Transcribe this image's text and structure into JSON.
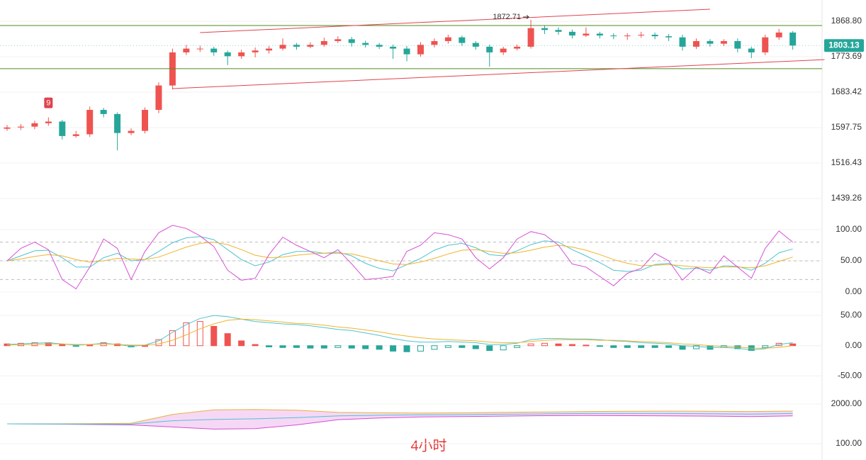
{
  "chart_data": [
    {
      "type": "candlestick",
      "log_scale": true,
      "grid": true,
      "ylim": [
        1409.5,
        1928.3
      ],
      "yticks": [
        {
          "value": 1868.8,
          "label": "1868.80"
        },
        1773.69,
        1683.42,
        1597.75,
        1516.43,
        1439.26
      ],
      "up_color": "#ef5350",
      "down_color": "#26a69a",
      "open": [
        1595,
        1598,
        1600,
        1608,
        1612,
        1578,
        1582,
        1640,
        1630,
        1585,
        1590,
        1640,
        1700,
        1785,
        1795,
        1795,
        1785,
        1775,
        1785,
        1790,
        1795,
        1805,
        1800,
        1805,
        1815,
        1820,
        1810,
        1805,
        1800,
        1795,
        1780,
        1805,
        1815,
        1825,
        1810,
        1800,
        1785,
        1795,
        1800,
        1850,
        1845,
        1840,
        1830,
        1835,
        1830,
        1828,
        1830,
        1832,
        1828,
        1825,
        1800,
        1815,
        1808,
        1815,
        1795,
        1785,
        1825,
        1838
      ],
      "high": [
        1604,
        1606,
        1614,
        1622,
        1616,
        1590,
        1648,
        1645,
        1634,
        1596,
        1646,
        1708,
        1795,
        1805,
        1803,
        1800,
        1790,
        1792,
        1798,
        1802,
        1822,
        1810,
        1812,
        1824,
        1828,
        1826,
        1816,
        1810,
        1806,
        1802,
        1812,
        1822,
        1832,
        1830,
        1815,
        1806,
        1800,
        1806,
        1872.71,
        1858,
        1852,
        1846,
        1852,
        1840,
        1836,
        1836,
        1840,
        1838,
        1834,
        1832,
        1822,
        1820,
        1820,
        1822,
        1800,
        1832,
        1848,
        1842
      ],
      "low": [
        1590,
        1592,
        1594,
        1602,
        1570,
        1574,
        1576,
        1622,
        1545,
        1580,
        1584,
        1632,
        1690,
        1778,
        1786,
        1776,
        1752,
        1768,
        1772,
        1782,
        1790,
        1792,
        1796,
        1800,
        1810,
        1800,
        1798,
        1794,
        1768,
        1762,
        1774,
        1798,
        1808,
        1802,
        1792,
        1748,
        1778,
        1790,
        1795,
        1834,
        1832,
        1822,
        1826,
        1822,
        1820,
        1818,
        1824,
        1820,
        1815,
        1790,
        1794,
        1800,
        1802,
        1785,
        1770,
        1778,
        1818,
        1792
      ],
      "close": [
        1598,
        1600,
        1608,
        1612,
        1578,
        1582,
        1640,
        1630,
        1585,
        1590,
        1640,
        1700,
        1785,
        1795,
        1795,
        1785,
        1775,
        1785,
        1790,
        1795,
        1805,
        1800,
        1805,
        1815,
        1820,
        1810,
        1805,
        1800,
        1795,
        1780,
        1805,
        1815,
        1825,
        1810,
        1800,
        1785,
        1795,
        1800,
        1850,
        1845,
        1840,
        1830,
        1835,
        1830,
        1828,
        1830,
        1832,
        1828,
        1825,
        1800,
        1815,
        1808,
        1815,
        1795,
        1785,
        1825,
        1838,
        1803.13
      ],
      "hlines": {
        "values": [
          1857.2,
          1742.6
        ],
        "color": "#4f8a1f"
      },
      "channel": {
        "color": "#e0434f",
        "lines": [
          {
            "x": [
              14,
              51
            ],
            "values": [
              1837.9,
              1902.2
            ]
          },
          {
            "x": [
              12,
              59.3
            ],
            "values": [
              1692.3,
              1766.1
            ]
          }
        ]
      },
      "marker": {
        "text": "9",
        "index": 3,
        "color": "#e0434f"
      },
      "last_price_color": "#26a69a",
      "caption": "4小时"
    },
    {
      "type": "line",
      "grid": true,
      "ylim": [
        -14.8,
        127.3
      ],
      "yticks": [
        {
          "value": 100,
          "label": "100.00"
        },
        {
          "value": 50,
          "label": "50.00"
        },
        {
          "value": 0,
          "label": "0.00"
        }
      ],
      "ref_lines": [
        80,
        50,
        20
      ],
      "series": [
        {
          "color": "#4fc3d0",
          "values": [
            50,
            58,
            66,
            67,
            55,
            40,
            40,
            55,
            62,
            50,
            52,
            65,
            79,
            87,
            89,
            84,
            68,
            52,
            42,
            48,
            60,
            65,
            65,
            62,
            64,
            58,
            46,
            38,
            34,
            44,
            54,
            67,
            75,
            78,
            71,
            60,
            58,
            66,
            76,
            82,
            80,
            68,
            58,
            47,
            35,
            33,
            35,
            44,
            46,
            37,
            38,
            35,
            42,
            41,
            35,
            46,
            63,
            69
          ]
        },
        {
          "color": "#f0b429",
          "values": [
            50,
            53,
            57,
            60,
            58,
            52,
            48,
            50,
            54,
            53,
            52,
            56,
            64,
            72,
            78,
            80,
            76,
            68,
            59,
            55,
            56,
            59,
            61,
            62,
            62,
            61,
            56,
            50,
            45,
            44,
            48,
            54,
            61,
            67,
            68,
            65,
            62,
            63,
            67,
            72,
            75,
            72,
            67,
            60,
            52,
            46,
            42,
            43,
            44,
            42,
            40,
            39,
            40,
            40,
            39,
            42,
            49,
            56
          ]
        },
        {
          "color": "#d64fd6",
          "values": [
            50,
            70,
            80,
            68,
            20,
            5,
            40,
            85,
            70,
            20,
            65,
            95,
            107,
            102,
            90,
            73,
            35,
            19,
            22,
            60,
            88,
            75,
            65,
            55,
            68,
            45,
            20,
            22,
            25,
            65,
            75,
            95,
            92,
            85,
            55,
            37,
            55,
            85,
            97,
            92,
            75,
            45,
            40,
            25,
            10,
            30,
            38,
            62,
            50,
            19,
            40,
            30,
            58,
            40,
            22,
            70,
            98,
            80
          ]
        }
      ]
    },
    {
      "type": "macd",
      "grid": true,
      "ylim": [
        -78.8,
        73.5
      ],
      "yticks": [
        {
          "value": 50,
          "label": "50.00"
        },
        {
          "value": 0,
          "label": "0.00"
        },
        {
          "value": -50,
          "label": "-50.00"
        }
      ],
      "histogram": {
        "up_color": "#ef5350",
        "down_color": "#26a69a",
        "values": [
          3,
          4,
          5,
          5,
          2,
          -1,
          1,
          5,
          3,
          -2,
          0,
          10,
          25,
          38,
          40,
          32,
          20,
          8,
          2,
          -2,
          -3,
          -3,
          -4,
          -4,
          -3,
          -4,
          -5,
          -6,
          -9,
          -10,
          -9,
          -6,
          -3,
          -3,
          -5,
          -8,
          -7,
          -3,
          3,
          4,
          3,
          2,
          1,
          -1,
          -3,
          -3,
          -3,
          -3,
          -3,
          -6,
          -5,
          -6,
          -3,
          -5,
          -8,
          -3,
          4,
          3
        ]
      },
      "series": [
        {
          "color": "#4fc3d0",
          "values": [
            2,
            3,
            4,
            5,
            3,
            1,
            2,
            4,
            2,
            -1,
            1,
            8,
            22,
            35,
            45,
            50,
            48,
            44,
            40,
            38,
            36,
            35,
            33,
            30,
            27,
            25,
            21,
            17,
            12,
            8,
            6,
            6,
            7,
            6,
            5,
            2,
            2,
            4,
            10,
            12,
            12,
            11,
            11,
            10,
            8,
            7,
            5,
            4,
            3,
            0,
            -1,
            -3,
            -3,
            -4,
            -7,
            -5,
            2,
            5
          ]
        },
        {
          "color": "#f0b429",
          "values": [
            1,
            2,
            2,
            3,
            3,
            2,
            2,
            3,
            2,
            1,
            1,
            3,
            9,
            18,
            28,
            36,
            42,
            44,
            43,
            41,
            39,
            37,
            36,
            34,
            31,
            29,
            26,
            23,
            19,
            16,
            13,
            11,
            10,
            9,
            8,
            6,
            5,
            5,
            7,
            9,
            10,
            10,
            10,
            9,
            9,
            8,
            7,
            6,
            5,
            3,
            2,
            0,
            -1,
            -2,
            -4,
            -4,
            -3,
            0
          ]
        }
      ]
    },
    {
      "type": "line",
      "grid": true,
      "ylim": [
        -680,
        2509
      ],
      "yticks": [
        {
          "value": 2000,
          "label": "2000.00"
        },
        {
          "value": 100,
          "label": "100.00"
        }
      ],
      "x": [
        0,
        3,
        6,
        9,
        12,
        15,
        18,
        21,
        24,
        27,
        30,
        33,
        36,
        39,
        42,
        45,
        48,
        51,
        54,
        57
      ],
      "fill_between": [
        0,
        1
      ],
      "fill_color": "#f6d8f6",
      "series": [
        {
          "color": "#e8b23a",
          "values": [
            1050,
            1050,
            1060,
            1080,
            1500,
            1720,
            1740,
            1700,
            1600,
            1580,
            1570,
            1580,
            1600,
            1620,
            1640,
            1650,
            1660,
            1650,
            1640,
            1660
          ]
        },
        {
          "color": "#d050d0",
          "values": [
            1050,
            1040,
            1020,
            1000,
            900,
            800,
            820,
            1000,
            1250,
            1330,
            1380,
            1400,
            1420,
            1440,
            1450,
            1440,
            1430,
            1420,
            1400,
            1430
          ]
        },
        {
          "color": "#4fc3d0",
          "values": [
            1050,
            1045,
            1040,
            1040,
            1200,
            1260,
            1290,
            1350,
            1430,
            1460,
            1480,
            1490,
            1510,
            1530,
            1545,
            1545,
            1545,
            1535,
            1520,
            1545
          ]
        }
      ]
    }
  ]
}
